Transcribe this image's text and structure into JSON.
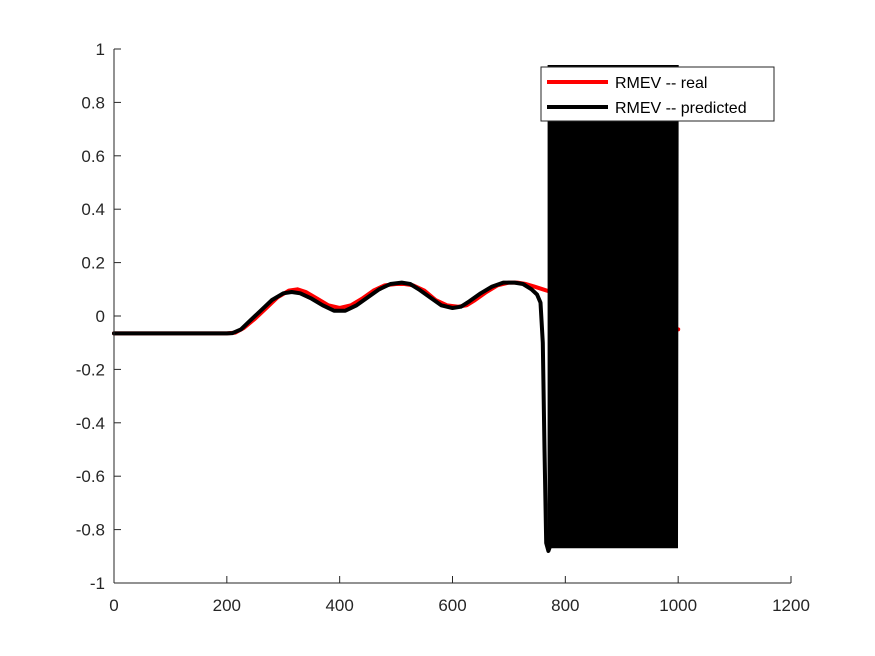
{
  "chart_data": {
    "type": "line",
    "title": "",
    "xlabel": "",
    "ylabel": "",
    "xlim": [
      0,
      1200
    ],
    "ylim": [
      -1,
      1
    ],
    "xticks": [
      0,
      200,
      400,
      600,
      800,
      1000,
      1200
    ],
    "xtick_labels": [
      "0",
      "200",
      "400",
      "600",
      "800",
      "1000",
      "1200"
    ],
    "yticks": [
      -1,
      -0.8,
      -0.6,
      -0.4,
      -0.2,
      0,
      0.2,
      0.4,
      0.6,
      0.8,
      1
    ],
    "ytick_labels": [
      "-1",
      "-0.8",
      "-0.6",
      "-0.4",
      "-0.2",
      "0",
      "0.2",
      "0.4",
      "0.6",
      "0.8",
      "1"
    ],
    "grid": false,
    "legend_position": "top-right",
    "series": [
      {
        "name": "RMEV -- real",
        "color": "#ff0000",
        "x": [
          0,
          200,
          215,
          230,
          250,
          270,
          290,
          310,
          325,
          340,
          360,
          380,
          400,
          420,
          440,
          460,
          480,
          500,
          515,
          530,
          550,
          570,
          590,
          610,
          625,
          640,
          660,
          680,
          700,
          715,
          730,
          745,
          760,
          775,
          800,
          850,
          900,
          950,
          1000
        ],
        "y": [
          -0.065,
          -0.065,
          -0.062,
          -0.045,
          -0.01,
          0.03,
          0.07,
          0.095,
          0.1,
          0.09,
          0.065,
          0.04,
          0.03,
          0.04,
          0.065,
          0.095,
          0.115,
          0.12,
          0.12,
          0.115,
          0.095,
          0.06,
          0.04,
          0.035,
          0.04,
          0.06,
          0.09,
          0.115,
          0.125,
          0.125,
          0.12,
          0.11,
          0.1,
          0.09,
          0.07,
          0.04,
          0.0,
          -0.03,
          -0.05
        ]
      },
      {
        "name": "RMEV -- predicted",
        "color": "#000000",
        "x": [
          0,
          200,
          210,
          225,
          240,
          260,
          280,
          300,
          315,
          330,
          350,
          370,
          390,
          410,
          430,
          450,
          470,
          490,
          510,
          525,
          540,
          560,
          580,
          600,
          615,
          630,
          650,
          670,
          690,
          710,
          725,
          740,
          750,
          756,
          760,
          763,
          766,
          770,
          775
        ],
        "y": [
          -0.065,
          -0.065,
          -0.064,
          -0.05,
          -0.02,
          0.02,
          0.06,
          0.085,
          0.09,
          0.085,
          0.065,
          0.04,
          0.02,
          0.02,
          0.04,
          0.07,
          0.1,
          0.12,
          0.125,
          0.12,
          0.1,
          0.07,
          0.04,
          0.03,
          0.035,
          0.055,
          0.085,
          0.11,
          0.125,
          0.125,
          0.12,
          0.1,
          0.08,
          0.05,
          -0.1,
          -0.5,
          -0.85,
          -0.88,
          -0.85
        ],
        "oscillation": {
          "x_start": 770,
          "x_end": 1000,
          "upper": 0.94,
          "lower": -0.87
        }
      }
    ]
  }
}
